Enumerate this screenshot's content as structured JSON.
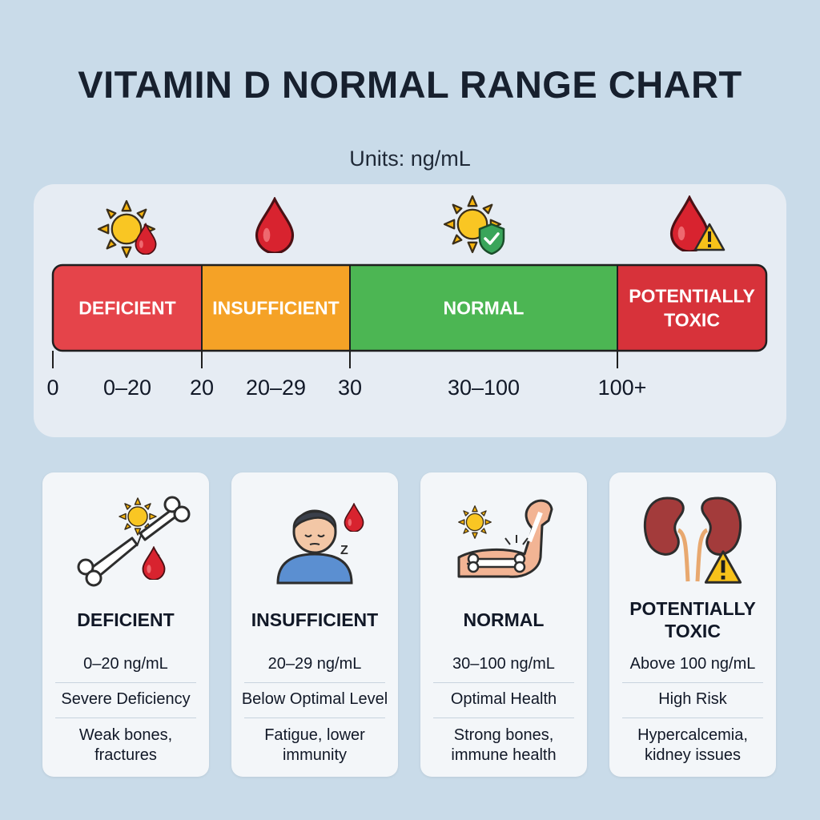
{
  "title": "VITAMIN D NORMAL RANGE CHART",
  "units_label": "Units: ng/mL",
  "chart_data": {
    "type": "bar",
    "orientation": "horizontal-range-scale",
    "unit": "ng/mL",
    "segments": [
      {
        "label": "DEFICIENT",
        "start": 0,
        "end": 20,
        "range_label": "0–20",
        "color": "#e5444a",
        "icon": "sun-with-blood-drop-icon"
      },
      {
        "label": "INSUFFICIENT",
        "start": 20,
        "end": 30,
        "range_label": "20–29",
        "color": "#f5a226",
        "icon": "blood-drop-icon"
      },
      {
        "label": "NORMAL",
        "start": 30,
        "end": 100,
        "range_label": "30–100",
        "color": "#4cb653",
        "icon": "sun-with-shield-icon"
      },
      {
        "label_lines": [
          "POTENTIALLY",
          "TOXIC"
        ],
        "start": 100,
        "end": null,
        "range_label": "",
        "color": "#d7323a",
        "icon": "blood-drop-warning-icon"
      }
    ],
    "ticks": [
      "0",
      "20",
      "30",
      "100+"
    ]
  },
  "cards": [
    {
      "title": "DEFICIENT",
      "range": "0–20 ng/mL",
      "level": "Severe Deficiency",
      "effect_lines": [
        "Weak bones,",
        "fractures"
      ],
      "icon": "broken-bone-icon"
    },
    {
      "title": "INSUFFICIENT",
      "range": "20–29 ng/mL",
      "level": "Below Optimal Level",
      "effect_lines": [
        "Fatigue, lower",
        "immunity"
      ],
      "icon": "tired-person-icon"
    },
    {
      "title": "NORMAL",
      "range": "30–100 ng/mL",
      "level": "Optimal Health",
      "effect_lines": [
        "Strong bones,",
        "immune health"
      ],
      "icon": "strong-arm-icon"
    },
    {
      "title_lines": [
        "POTENTIALLY",
        "TOXIC"
      ],
      "range": "Above 100 ng/mL",
      "level": "High Risk",
      "effect_lines": [
        "Hypercalcemia,",
        "kidney issues"
      ],
      "icon": "kidney-warning-icon"
    }
  ]
}
